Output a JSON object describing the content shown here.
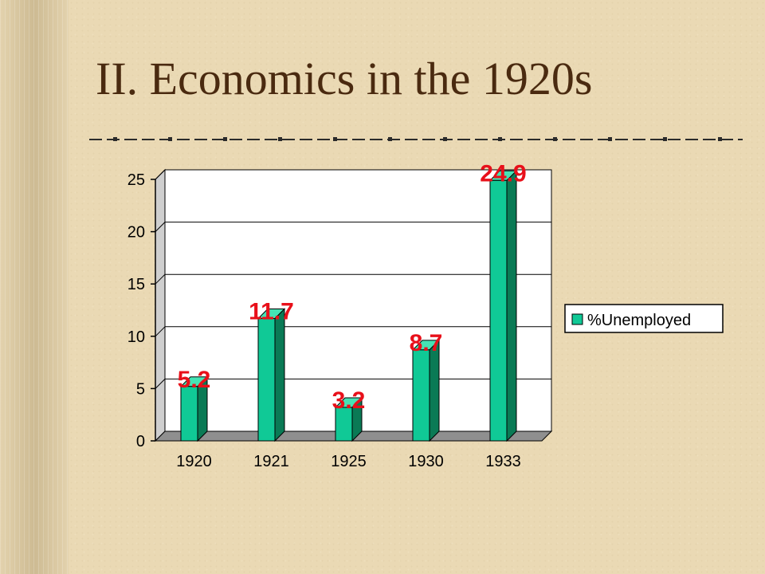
{
  "slide": {
    "title": "II. Economics in the 1920s"
  },
  "colors": {
    "bar_front": "#10c996",
    "bar_side": "#0a7a55",
    "bar_top": "#45e3b4",
    "label": "#e8101a",
    "title": "#4a2a10"
  },
  "chart_data": {
    "type": "bar",
    "categories": [
      "1920",
      "1921",
      "1925",
      "1930",
      "1933"
    ],
    "series": [
      {
        "name": "%Unemployed",
        "values": [
          5.2,
          11.7,
          3.2,
          8.7,
          24.9
        ]
      }
    ],
    "data_labels": [
      "5.2",
      "11.7",
      "3.2",
      "8.7",
      "24.9"
    ],
    "yticks": [
      "0",
      "5",
      "10",
      "15",
      "20",
      "25"
    ],
    "ylim": [
      0,
      25
    ],
    "grid": true,
    "legend": "right",
    "style": "3d"
  }
}
